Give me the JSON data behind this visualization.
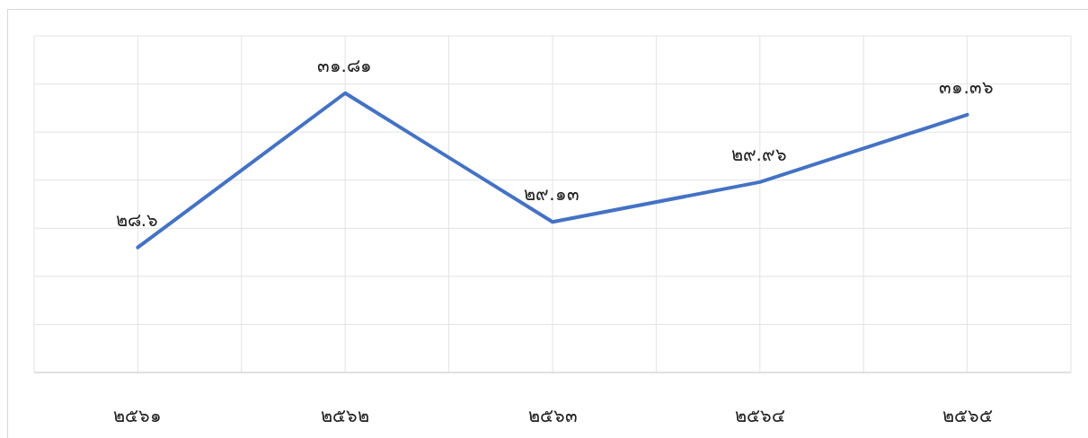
{
  "chart_data": {
    "type": "line",
    "categories": [
      "๒๕๖๑",
      "๒๕๖๒",
      "๒๕๖๓",
      "๒๕๖๔",
      "๒๕๖๕"
    ],
    "values": [
      28.6,
      31.81,
      29.13,
      29.96,
      31.36
    ],
    "value_labels": [
      "๒๘.๖",
      "๓๑.๘๑",
      "๒๙.๑๓",
      "๒๙.๙๖",
      "๓๑.๓๖"
    ],
    "color": "#4472c4",
    "ylim": [
      26,
      33
    ],
    "yticks": [
      {
        "value": 26,
        "label": null
      },
      {
        "value": 27,
        "label": null
      },
      {
        "value": 28,
        "label": null
      },
      {
        "value": 29,
        "label": null
      },
      {
        "value": 30,
        "label": null
      },
      {
        "value": 31,
        "label": null
      },
      {
        "value": 32,
        "label": null
      },
      {
        "value": 33,
        "label": null
      }
    ],
    "grid": true,
    "tick_labels": "x"
  }
}
